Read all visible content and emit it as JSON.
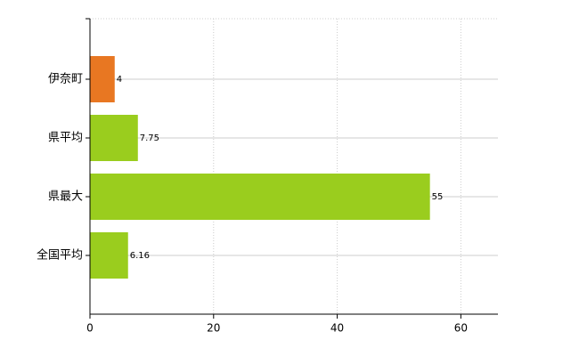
{
  "chart_data": {
    "type": "hbar",
    "categories": [
      "伊奈町",
      "県平均",
      "県最大",
      "全国平均"
    ],
    "values": [
      4,
      7.75,
      55,
      6.16
    ],
    "colors": [
      "#e87722",
      "#9acd1e",
      "#9acd1e",
      "#9acd1e"
    ],
    "xlim": [
      0,
      66
    ],
    "xticks": [
      0,
      20,
      40,
      60
    ],
    "grid": true
  }
}
